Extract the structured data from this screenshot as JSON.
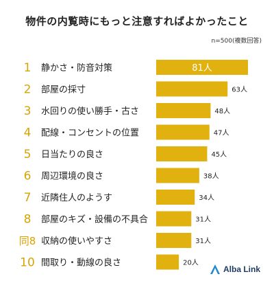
{
  "title": "物件の内覧時にもっと注意すればよかったこと",
  "note": "n=500(複数回答)",
  "brand": "Alba Link",
  "colors": {
    "bar": "#E0B10F",
    "rank": "#D9A300",
    "bar_label_inside": "#ffffff",
    "text": "#222222"
  },
  "chart_data": {
    "type": "bar",
    "orientation": "horizontal",
    "ranks": [
      "1",
      "2",
      "3",
      "4",
      "5",
      "6",
      "7",
      "8",
      "同8",
      "10"
    ],
    "categories": [
      "静かさ・防音対策",
      "部屋の採寸",
      "水回りの使い勝手・古さ",
      "配線・コンセントの位置",
      "日当たりの良さ",
      "周辺環境の良さ",
      "近隣住人のようす",
      "部屋のキズ・設備の不具合",
      "収納の使いやすさ",
      "間取り・動線の良さ"
    ],
    "values": [
      81,
      63,
      48,
      47,
      45,
      38,
      34,
      31,
      31,
      20
    ],
    "value_labels": [
      "81人",
      "63人",
      "48人",
      "47人",
      "45人",
      "38人",
      "34人",
      "31人",
      "31人",
      "20人"
    ],
    "unit": "人",
    "xlim": [
      0,
      81
    ],
    "grid": false,
    "legend": "none"
  }
}
